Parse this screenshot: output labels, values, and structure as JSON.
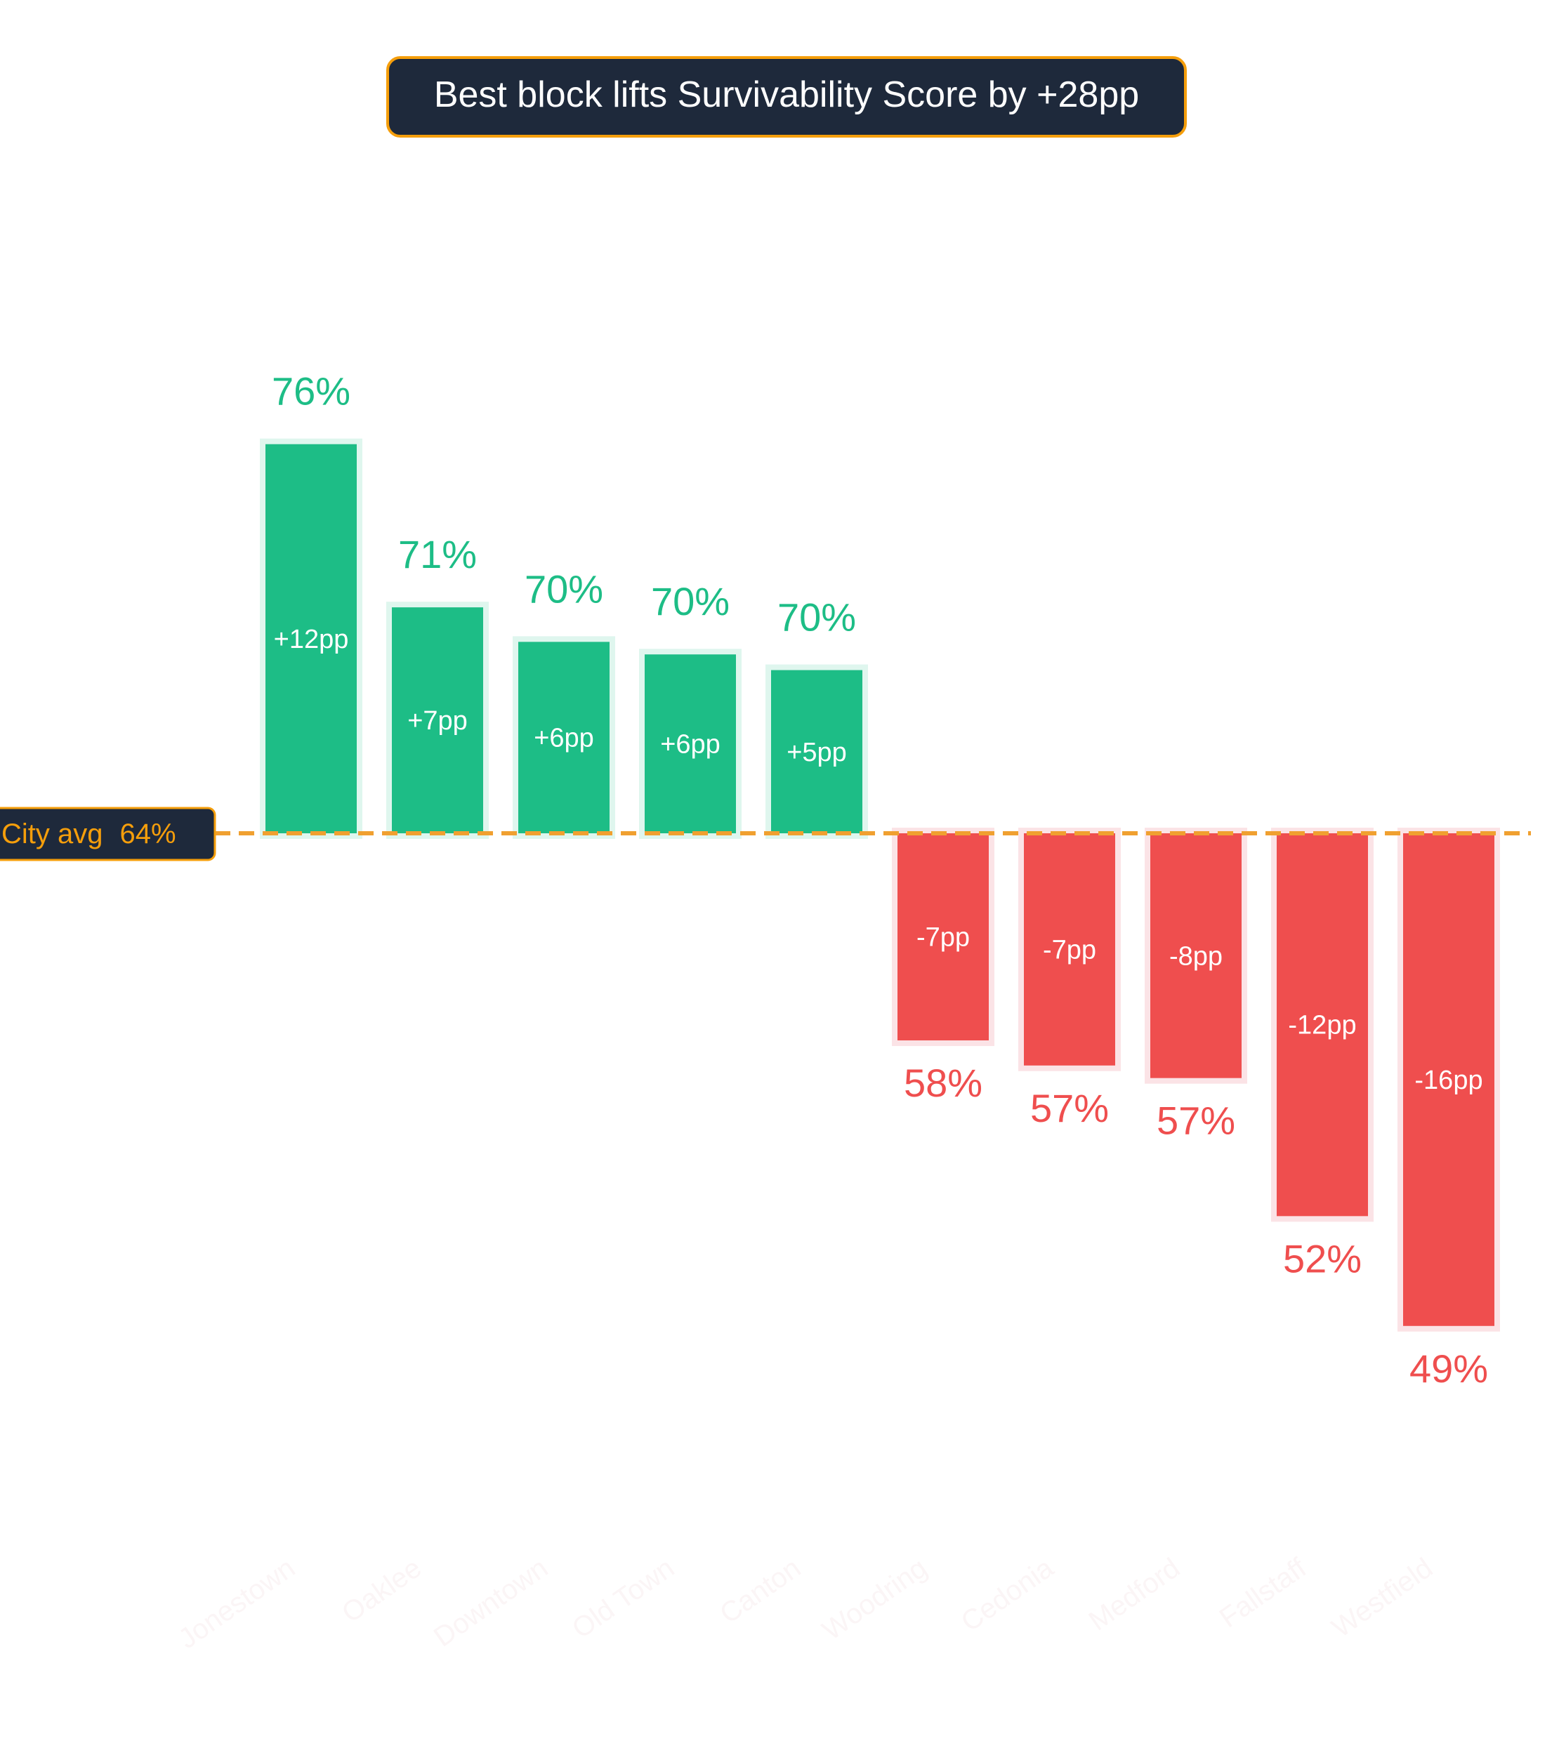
{
  "chart_data": {
    "type": "bar",
    "title": "Best block lifts Survivability Score by +28pp",
    "baseline": {
      "label": "City avg",
      "value": 64,
      "value_label": "64%"
    },
    "categories": [
      "Jonestown",
      "Oaklee",
      "Downtown",
      "Old Town",
      "Canton",
      "Woodring",
      "Cedonia",
      "Medford",
      "Fallstaff",
      "Westfield"
    ],
    "values": [
      76,
      71,
      70,
      70,
      70,
      58,
      57,
      57,
      52,
      49
    ],
    "value_labels": [
      "76%",
      "71%",
      "70%",
      "70%",
      "70%",
      "58%",
      "57%",
      "57%",
      "52%",
      "49%"
    ],
    "diffs": [
      12.4,
      7.2,
      6.1,
      5.7,
      5.2,
      -6.6,
      -7.4,
      -7.8,
      -12.2,
      -15.7
    ],
    "diff_labels": [
      "+12pp",
      "+7pp",
      "+6pp",
      "+6pp",
      "+5pp",
      "-7pp",
      "-7pp",
      "-8pp",
      "-12pp",
      "-16pp"
    ],
    "colors": {
      "positive": "#1dbd86",
      "positive_halo": "#dff6ee",
      "negative": "#ef4e4e",
      "negative_halo": "#fbe3e6",
      "baseline": "#f0a030",
      "title_bg": "#1e293b",
      "accent": "#f59e0b",
      "category_label": "#fbf5f6"
    }
  }
}
